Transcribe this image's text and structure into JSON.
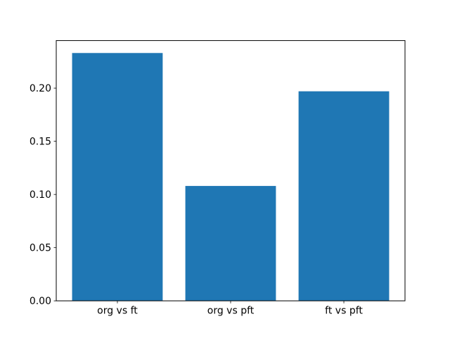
{
  "chart_data": {
    "type": "bar",
    "categories": [
      "org vs ft",
      "org vs pft",
      "ft vs pft"
    ],
    "values": [
      0.233,
      0.108,
      0.197
    ],
    "xlabel": "",
    "ylabel": "",
    "ylim": [
      0,
      0.2447
    ],
    "yticks": [
      0,
      0.05,
      0.1,
      0.15,
      0.2
    ],
    "ytick_labels": [
      "0.00",
      "0.05",
      "0.10",
      "0.15",
      "0.20"
    ],
    "bar_color": "#1f77b4",
    "bar_width_fraction": 0.8,
    "grid": false,
    "legend": null,
    "spine_color": "#000000",
    "background_color": "#ffffff"
  }
}
